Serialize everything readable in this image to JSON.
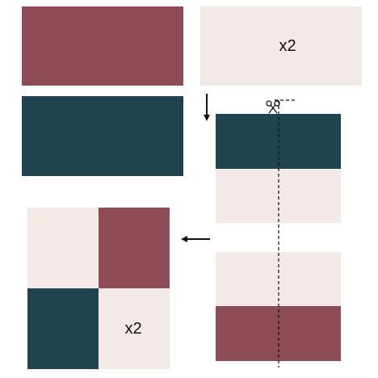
{
  "colors": {
    "rose": "#8E4C57",
    "teal": "#1F434F",
    "cream": "#F3EAE8",
    "ink": "#111111"
  },
  "labels": {
    "cream_strip_multiplier": "x2",
    "finished_block_multiplier": "x2"
  },
  "icons": {
    "arrow_down": "arrow-down-icon",
    "arrow_left": "arrow-left-icon",
    "cut": "scissors-icon"
  }
}
